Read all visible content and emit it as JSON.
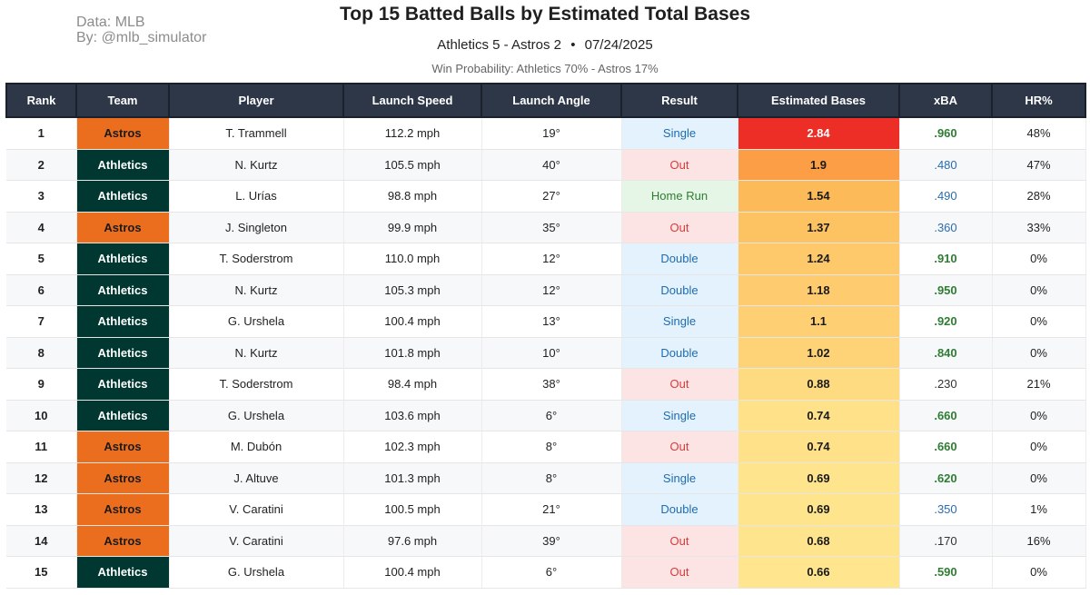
{
  "credits": {
    "source": "Data: MLB",
    "author": "By: @mlb_simulator"
  },
  "title": "Top 15 Batted Balls by Estimated Total Bases",
  "subtitle": {
    "matchup": "Athletics 5 - Astros 2",
    "separator": "•",
    "date": "07/24/2025"
  },
  "win_probability": "Win Probability: Athletics 70% - Astros 17%",
  "colors": {
    "astros": "#eb6e1f",
    "athletics": "#003831",
    "header": "#2d3748",
    "single_double_bg": "#e3f2fd",
    "out_bg": "#fde4e4",
    "home_run_bg": "#e6f6e6",
    "heat_high": "#ec2e26",
    "heat_low": "#fee58e"
  },
  "columns": [
    "Rank",
    "Team",
    "Player",
    "Launch Speed",
    "Launch Angle",
    "Result",
    "Estimated Bases",
    "xBA",
    "HR%"
  ],
  "rows": [
    {
      "rank": "1",
      "team": "Astros",
      "player": "T. Trammell",
      "speed": "112.2 mph",
      "angle": "19°",
      "result": "Single",
      "eb": "2.84",
      "xba": ".960",
      "hr": "48%"
    },
    {
      "rank": "2",
      "team": "Athletics",
      "player": "N. Kurtz",
      "speed": "105.5 mph",
      "angle": "40°",
      "result": "Out",
      "eb": "1.9",
      "xba": ".480",
      "hr": "47%"
    },
    {
      "rank": "3",
      "team": "Athletics",
      "player": "L. Urías",
      "speed": "98.8 mph",
      "angle": "27°",
      "result": "Home Run",
      "eb": "1.54",
      "xba": ".490",
      "hr": "28%"
    },
    {
      "rank": "4",
      "team": "Astros",
      "player": "J. Singleton",
      "speed": "99.9 mph",
      "angle": "35°",
      "result": "Out",
      "eb": "1.37",
      "xba": ".360",
      "hr": "33%"
    },
    {
      "rank": "5",
      "team": "Athletics",
      "player": "T. Soderstrom",
      "speed": "110.0 mph",
      "angle": "12°",
      "result": "Double",
      "eb": "1.24",
      "xba": ".910",
      "hr": "0%"
    },
    {
      "rank": "6",
      "team": "Athletics",
      "player": "N. Kurtz",
      "speed": "105.3 mph",
      "angle": "12°",
      "result": "Double",
      "eb": "1.18",
      "xba": ".950",
      "hr": "0%"
    },
    {
      "rank": "7",
      "team": "Athletics",
      "player": "G. Urshela",
      "speed": "100.4 mph",
      "angle": "13°",
      "result": "Single",
      "eb": "1.1",
      "xba": ".920",
      "hr": "0%"
    },
    {
      "rank": "8",
      "team": "Athletics",
      "player": "N. Kurtz",
      "speed": "101.8 mph",
      "angle": "10°",
      "result": "Double",
      "eb": "1.02",
      "xba": ".840",
      "hr": "0%"
    },
    {
      "rank": "9",
      "team": "Athletics",
      "player": "T. Soderstrom",
      "speed": "98.4 mph",
      "angle": "38°",
      "result": "Out",
      "eb": "0.88",
      "xba": ".230",
      "hr": "21%"
    },
    {
      "rank": "10",
      "team": "Athletics",
      "player": "G. Urshela",
      "speed": "103.6 mph",
      "angle": "6°",
      "result": "Single",
      "eb": "0.74",
      "xba": ".660",
      "hr": "0%"
    },
    {
      "rank": "11",
      "team": "Astros",
      "player": "M. Dubón",
      "speed": "102.3 mph",
      "angle": "8°",
      "result": "Out",
      "eb": "0.74",
      "xba": ".660",
      "hr": "0%"
    },
    {
      "rank": "12",
      "team": "Astros",
      "player": "J. Altuve",
      "speed": "101.3 mph",
      "angle": "8°",
      "result": "Single",
      "eb": "0.69",
      "xba": ".620",
      "hr": "0%"
    },
    {
      "rank": "13",
      "team": "Astros",
      "player": "V. Caratini",
      "speed": "100.5 mph",
      "angle": "21°",
      "result": "Double",
      "eb": "0.69",
      "xba": ".350",
      "hr": "1%"
    },
    {
      "rank": "14",
      "team": "Astros",
      "player": "V. Caratini",
      "speed": "97.6 mph",
      "angle": "39°",
      "result": "Out",
      "eb": "0.68",
      "xba": ".170",
      "hr": "16%"
    },
    {
      "rank": "15",
      "team": "Athletics",
      "player": "G. Urshela",
      "speed": "100.4 mph",
      "angle": "6°",
      "result": "Out",
      "eb": "0.66",
      "xba": ".590",
      "hr": "0%"
    }
  ]
}
